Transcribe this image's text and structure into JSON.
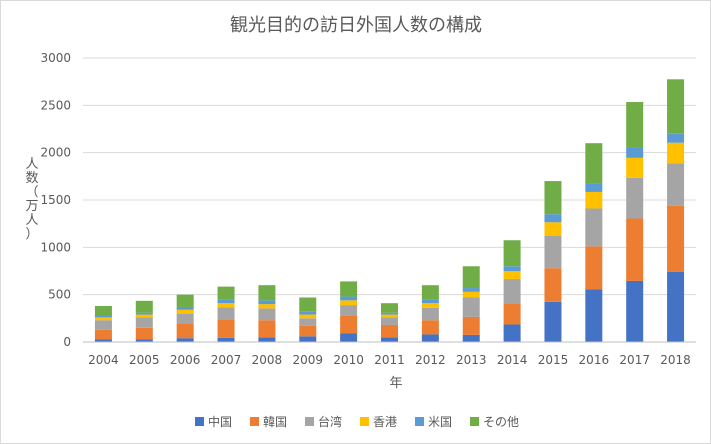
{
  "chart_data": {
    "type": "bar",
    "stacked": true,
    "title": "観光目的の訪日外国人数の構成",
    "xlabel": "年",
    "ylabel": "人数（万人）",
    "ylabel_chars": [
      "人",
      "数",
      "（",
      "万",
      "人",
      "）"
    ],
    "ylim": [
      0,
      3000
    ],
    "yticks": [
      0,
      500,
      1000,
      1500,
      2000,
      2500,
      3000
    ],
    "grid": true,
    "legend_position": "bottom",
    "categories": [
      "2004",
      "2005",
      "2006",
      "2007",
      "2008",
      "2009",
      "2010",
      "2011",
      "2012",
      "2013",
      "2014",
      "2015",
      "2016",
      "2017",
      "2018"
    ],
    "series": [
      {
        "name": "中国",
        "color": "#4472C4",
        "values": [
          30,
          30,
          40,
          45,
          50,
          60,
          90,
          50,
          80,
          75,
          185,
          425,
          555,
          645,
          740
        ]
      },
      {
        "name": "韓国",
        "color": "#ED7D31",
        "values": [
          100,
          120,
          150,
          195,
          180,
          110,
          185,
          130,
          150,
          190,
          225,
          355,
          455,
          660,
          700
        ]
      },
      {
        "name": "台湾",
        "color": "#A5A5A5",
        "values": [
          100,
          110,
          110,
          125,
          125,
          80,
          115,
          80,
          130,
          205,
          255,
          340,
          400,
          430,
          445
        ]
      },
      {
        "name": "香港",
        "color": "#FFC000",
        "values": [
          30,
          30,
          40,
          45,
          45,
          40,
          50,
          30,
          50,
          60,
          85,
          145,
          175,
          210,
          220
        ]
      },
      {
        "name": "米国",
        "color": "#5B9BD5",
        "values": [
          20,
          20,
          30,
          35,
          40,
          30,
          40,
          20,
          35,
          40,
          50,
          85,
          85,
          110,
          100
        ]
      },
      {
        "name": "その他",
        "color": "#70AD47",
        "values": [
          100,
          125,
          130,
          140,
          160,
          150,
          160,
          100,
          155,
          230,
          275,
          350,
          430,
          480,
          570
        ]
      }
    ]
  }
}
